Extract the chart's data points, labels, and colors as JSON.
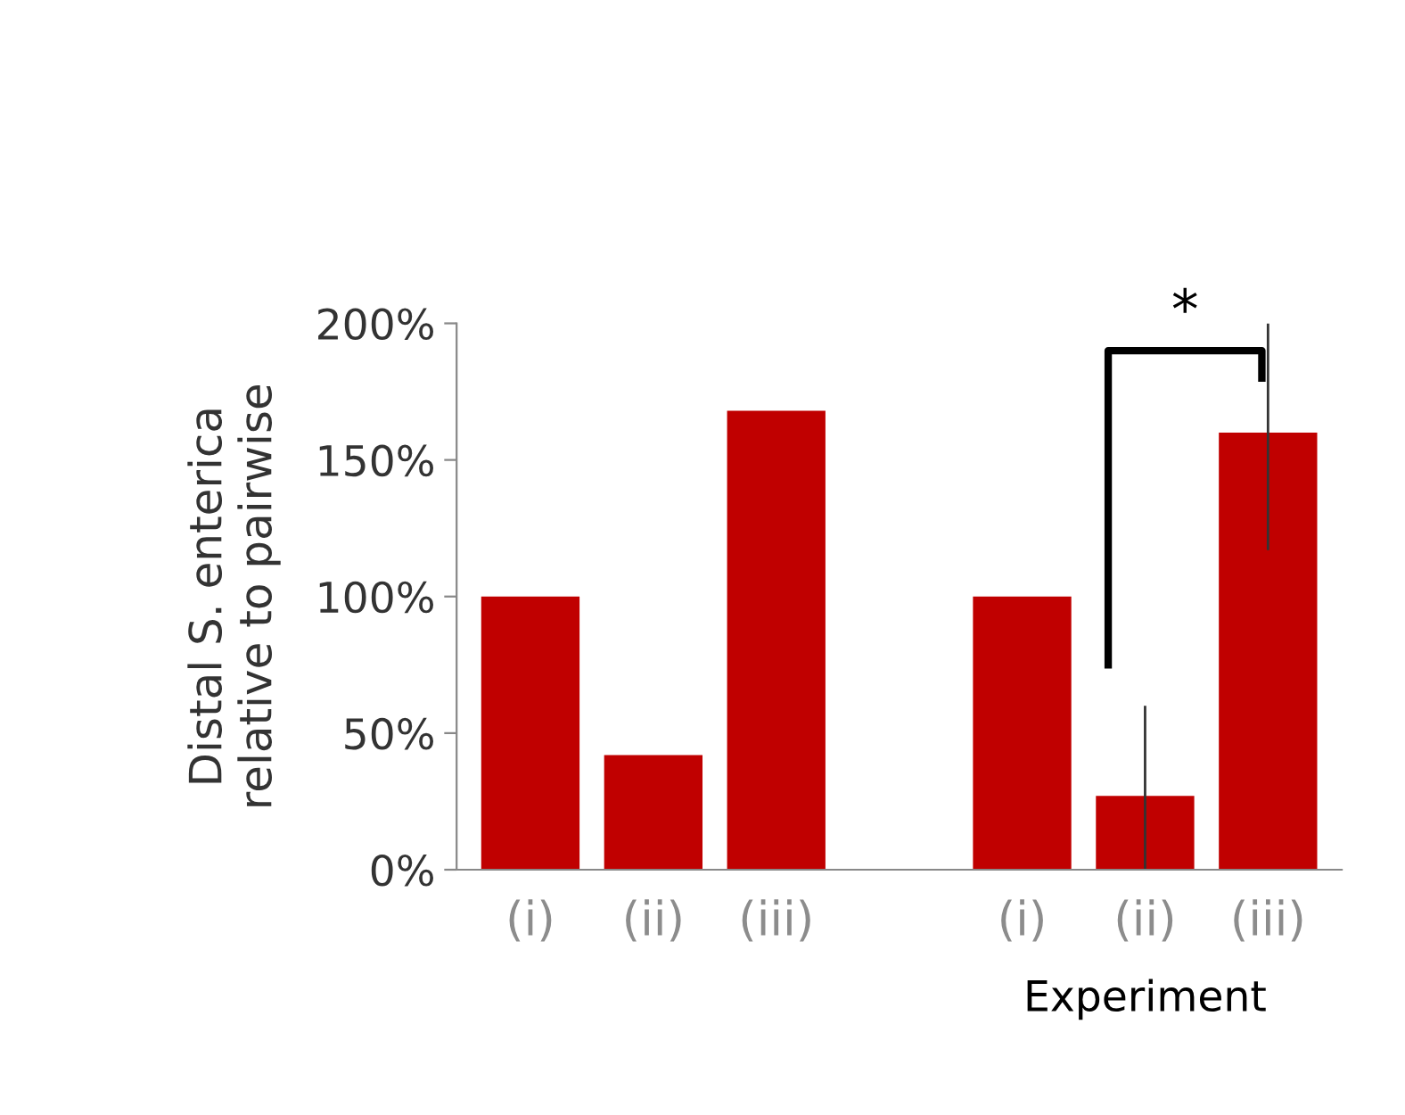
{
  "chart_data": {
    "type": "bar",
    "ylabel": "Distal S. enterica\nrelative to pairwise",
    "categories": [
      "(i)",
      "(ii)",
      "(iii)",
      null,
      "(i)",
      "(ii)",
      "(iii)"
    ],
    "values": [
      100,
      42,
      168,
      null,
      100,
      27,
      160
    ],
    "errors": [
      null,
      null,
      null,
      null,
      null,
      [
        0,
        60
      ],
      [
        117,
        200
      ]
    ],
    "color": "#c00000",
    "ylim": [
      0,
      200
    ],
    "yticks": [
      {
        "value": 0,
        "label": "0%"
      },
      {
        "value": 50,
        "label": "50%"
      },
      {
        "value": 100,
        "label": "100%"
      },
      {
        "value": 150,
        "label": "150%"
      },
      {
        "value": 200,
        "label": "200%"
      }
    ],
    "grid": false,
    "legend": false,
    "annotations": [
      "*",
      "Experiment"
    ]
  }
}
